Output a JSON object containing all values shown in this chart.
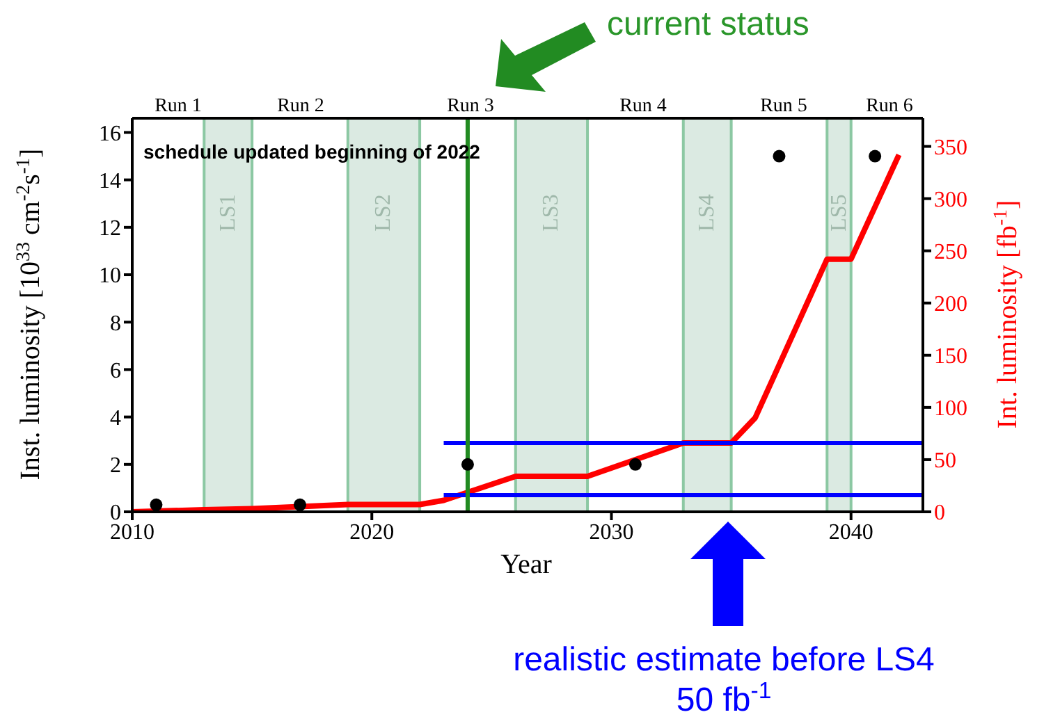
{
  "chart_data": {
    "type": "line",
    "xlabel": "Year",
    "ylabel": "Inst. luminosity [10$^{33}$ cm$^{-2}$s$^{-1}$]",
    "y2label": "Int. luminosity [fb$^{-1}$]",
    "xlim": [
      2010,
      2043
    ],
    "xticks": [
      2010,
      2020,
      2030,
      2040
    ],
    "ylim": [
      0,
      16.6
    ],
    "yticks": [
      0,
      2,
      4,
      6,
      8,
      10,
      12,
      14,
      16
    ],
    "y2lim": [
      0,
      377
    ],
    "y2ticks": [
      0,
      50,
      100,
      150,
      200,
      250,
      300,
      350
    ],
    "series": [
      {
        "type": "scatter",
        "color": "#000000",
        "marker": "circle",
        "x": [
          2011,
          2017,
          2024,
          2031,
          2037,
          2041
        ],
        "values": [
          0.3,
          0.3,
          2,
          2,
          15,
          15
        ]
      },
      {
        "axis": "y2",
        "color": "#ff0000",
        "marker": "none",
        "x": [
          2010,
          2013,
          2015,
          2019,
          2022,
          2023,
          2026,
          2029,
          2033,
          2035,
          2036,
          2039,
          2040,
          2042
        ],
        "values": [
          0,
          2,
          3,
          7,
          7,
          11,
          34,
          34,
          66,
          66,
          90,
          242,
          242,
          342
        ]
      },
      {
        "axis": "y2",
        "color": "#0000ff",
        "marker": "none",
        "x": [
          2023,
          2043
        ],
        "values": [
          66,
          66
        ]
      },
      {
        "axis": "y2",
        "color": "#0000ff",
        "marker": "none",
        "x": [
          2023,
          2043
        ],
        "values": [
          16,
          16
        ]
      }
    ],
    "bands": [
      {
        "axis": "x",
        "from": 2013,
        "to": 2015,
        "label": "LS1",
        "color": "#dbeae2"
      },
      {
        "axis": "x",
        "from": 2019,
        "to": 2022,
        "label": "LS2",
        "color": "#dbeae2"
      },
      {
        "axis": "x",
        "from": 2026,
        "to": 2029,
        "label": "LS3",
        "color": "#dbeae2"
      },
      {
        "axis": "x",
        "from": 2033,
        "to": 2035,
        "label": "LS4",
        "color": "#dbeae2"
      },
      {
        "axis": "x",
        "from": 2039,
        "to": 2040,
        "label": "LS5",
        "color": "#dbeae2"
      }
    ],
    "ref_lines": [
      {
        "axis": "x",
        "value": 2024,
        "color": "#228b22"
      }
    ],
    "annotations": [
      "schedule updated beginning of 2022",
      "current status",
      "realistic estimate before LS4\n50 fb$^{-1}$",
      "Run 1",
      "Run 2",
      "Run 3",
      "Run 4",
      "Run 5",
      "Run 6"
    ],
    "grid": false,
    "legend": false
  }
}
